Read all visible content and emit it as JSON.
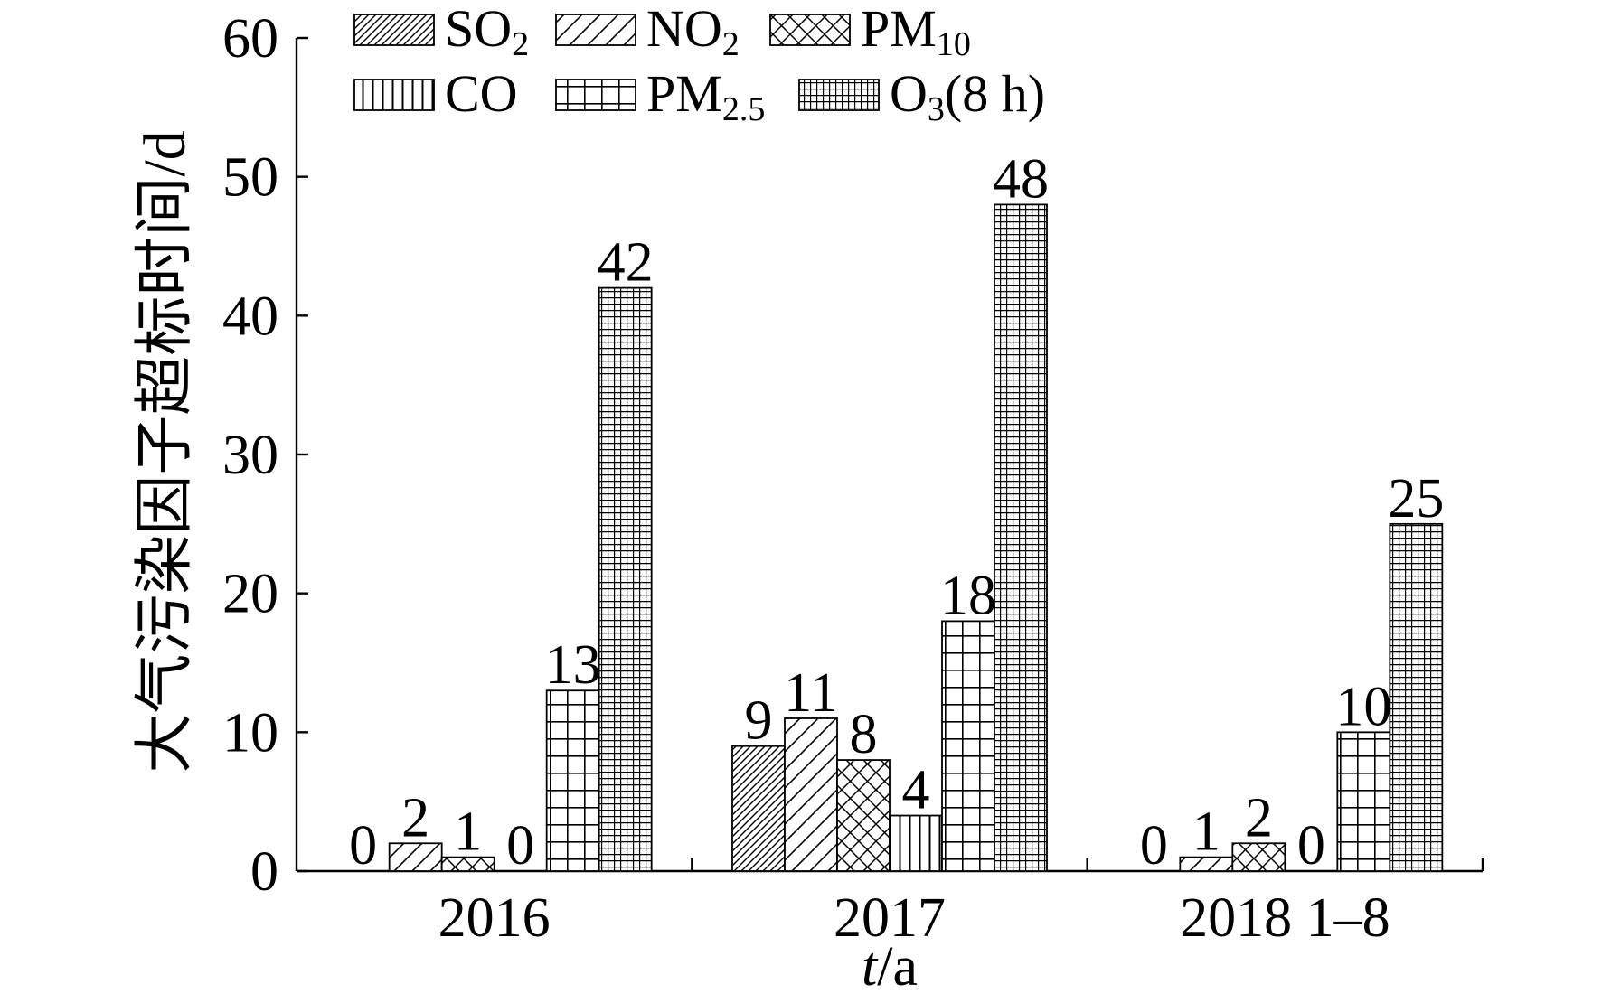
{
  "chart_data": {
    "type": "bar",
    "categories": [
      "2016",
      "2017",
      "2018 1–8"
    ],
    "xlabel": {
      "italic": "t",
      "rest": "/a"
    },
    "ylabel": "大气污染因子超标时间/d",
    "ylim": [
      0,
      60
    ],
    "yticks": [
      0,
      10,
      20,
      30,
      40,
      50,
      60
    ],
    "grid": false,
    "legend_position": "top-left",
    "data_labels": true,
    "colors": {
      "ink": "#000000",
      "background": "#ffffff"
    },
    "series": [
      {
        "name": {
          "main": "SO",
          "sub": "2"
        },
        "values": [
          0,
          9,
          0
        ],
        "pattern": "dense-diagonal-hatch"
      },
      {
        "name": {
          "main": "NO",
          "sub": "2"
        },
        "values": [
          2,
          11,
          1
        ],
        "pattern": "sparse-diagonal-hatch"
      },
      {
        "name": {
          "main": "PM",
          "sub": "10"
        },
        "values": [
          1,
          8,
          2
        ],
        "pattern": "crosshatch"
      },
      {
        "name": {
          "main": "CO"
        },
        "values": [
          0,
          4,
          0
        ],
        "pattern": "vertical-lines"
      },
      {
        "name": {
          "main": "PM",
          "sub": "2.5"
        },
        "values": [
          13,
          18,
          10
        ],
        "pattern": "grid"
      },
      {
        "name": {
          "main": "O",
          "sub": "3",
          "tail": "(8 h)"
        },
        "values": [
          42,
          48,
          25
        ],
        "pattern": "dense-grid"
      }
    ]
  }
}
